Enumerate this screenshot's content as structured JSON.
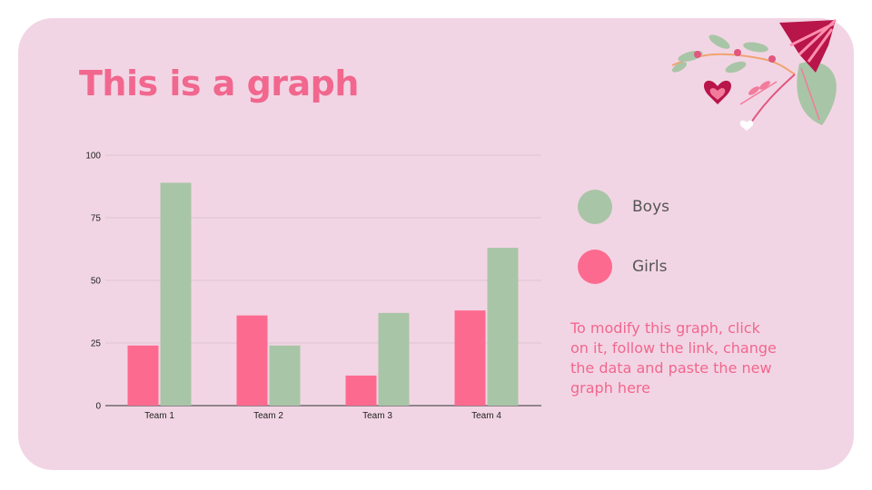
{
  "slide": {
    "title": "This is a graph",
    "note": "To modify this graph, click on it, follow the link, change the data and paste the new graph here"
  },
  "colors": {
    "background": "#f2d5e4",
    "boys": "#a9c5a7",
    "girls": "#fd6a90",
    "accent": "#f1678e"
  },
  "legend": [
    {
      "label": "Boys",
      "color": "#a9c5a7"
    },
    {
      "label": "Girls",
      "color": "#fd6a90"
    }
  ],
  "chart_data": {
    "type": "bar",
    "title": "",
    "xlabel": "",
    "ylabel": "",
    "categories": [
      "Team 1",
      "Team 2",
      "Team 3",
      "Team 4"
    ],
    "series": [
      {
        "name": "Girls",
        "values": [
          24,
          36,
          12,
          38
        ]
      },
      {
        "name": "Boys",
        "values": [
          89,
          24,
          37,
          63
        ]
      }
    ],
    "ylim": [
      0,
      100
    ],
    "yticks": [
      0,
      25,
      50,
      75,
      100
    ],
    "grid": true,
    "legend_position": "right"
  }
}
